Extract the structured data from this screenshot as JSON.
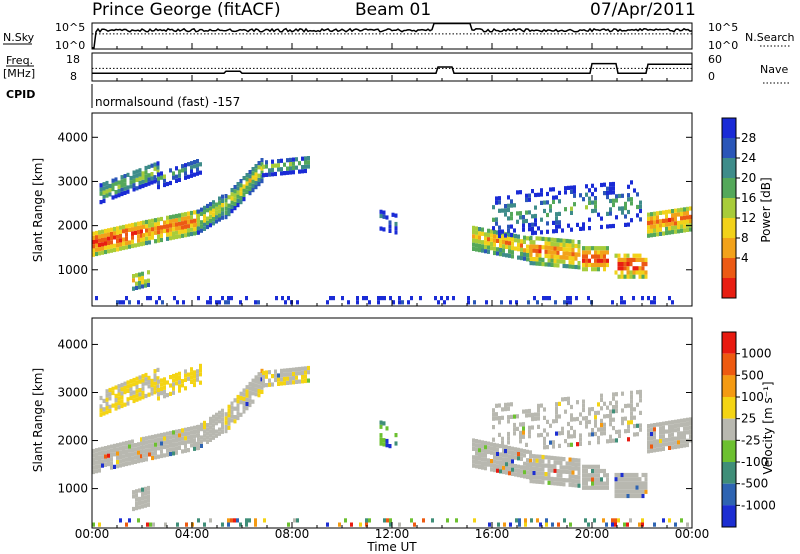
{
  "header": {
    "station": "Prince George (fitACF)",
    "beam": "Beam 01",
    "date": "07/Apr/2011"
  },
  "param_panels": {
    "nsky_label": "N.Sky",
    "nsky_ticks": [
      "10^5",
      "10^0"
    ],
    "nsearch_label": "N.Search",
    "freq_label": "Freq.",
    "freq_unit": "[MHz]",
    "freq_ticks": [
      "18",
      "8"
    ],
    "nave_label": "Nave",
    "nave_ticks": [
      "60",
      "0"
    ],
    "cpid_label": "CPID",
    "cpid_text": "normalsound (fast) -157"
  },
  "chart_data": [
    {
      "type": "heatmap",
      "name": "power",
      "ylabel": "Slant Range [km]",
      "xlabel": "Time UT",
      "x_ticks": [
        "00:00",
        "04:00",
        "08:00",
        "12:00",
        "16:00",
        "20:00",
        "00:00"
      ],
      "xlim_hours": [
        0,
        24
      ],
      "y_ticks": [
        1000,
        2000,
        3000,
        4000
      ],
      "ylim": [
        180,
        4550
      ],
      "colorbar_label": "Power [dB]",
      "colorbar_ticks": [
        "4",
        "8",
        "12",
        "16",
        "20",
        "24",
        "28"
      ],
      "colors": [
        "#1a2bd6",
        "#2a56b8",
        "#3e8c8a",
        "#54a85a",
        "#a8cc3a",
        "#f2d21a",
        "#f2a21a",
        "#ec5a14",
        "#e81e12"
      ]
    },
    {
      "type": "heatmap",
      "name": "velocity",
      "ylabel": "Slant Range [km]",
      "xlabel": "Time UT",
      "x_ticks": [
        "00:00",
        "04:00",
        "08:00",
        "12:00",
        "16:00",
        "20:00",
        "00:00"
      ],
      "xlim_hours": [
        0,
        24
      ],
      "y_ticks": [
        1000,
        2000,
        3000,
        4000
      ],
      "ylim": [
        180,
        4550
      ],
      "colorbar_label": "Velocity [m s⁻¹]",
      "colorbar_ticks": [
        "1000",
        "500",
        "100",
        "25",
        "-25",
        "-100",
        "-500",
        "-1000"
      ],
      "colors": [
        "#1c2ed2",
        "#2e64b2",
        "#3f8e78",
        "#6cc030",
        "#b8b8b0",
        "#f4d414",
        "#f49a12",
        "#ee5a10",
        "#e81a10"
      ]
    }
  ],
  "x_axis": {
    "label": "Time UT",
    "ticks": [
      "00:00",
      "04:00",
      "08:00",
      "12:00",
      "16:00",
      "20:00",
      "00:00"
    ]
  }
}
